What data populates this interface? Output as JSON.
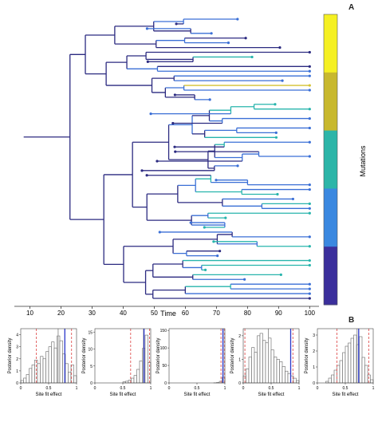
{
  "panels": {
    "a_label": "A",
    "b_label": "B"
  },
  "chart_data": [
    {
      "type": "phylogenetic-tree",
      "panel": "A",
      "xlabel": "Time",
      "x_ticks": [
        10,
        20,
        30,
        40,
        50,
        60,
        70,
        80,
        90,
        100
      ],
      "xlim": [
        5,
        103
      ],
      "colorbar": {
        "label": "Mutations",
        "colors": [
          "#f5f022",
          "#c8b82e",
          "#2cb5a8",
          "#3a88e0",
          "#3b2f9c"
        ],
        "branch_palette": [
          "#2b2a80",
          "#3a6fd6",
          "#27b4ac",
          "#d4c231"
        ]
      }
    },
    {
      "type": "histogram",
      "panel": "B",
      "ylabel": "Posterior density",
      "xlabel": "Site fit effect",
      "x_ticks": [
        "0",
        "0.5",
        "1"
      ],
      "bin_edges_from": 0.0,
      "bin_width": 0.05,
      "subplots": [
        {
          "y_ticks": [
            "0",
            "1",
            "2",
            "3",
            "4"
          ],
          "ylim": [
            0,
            4.5
          ],
          "counts": [
            0.2,
            0.4,
            0.7,
            1.2,
            1.5,
            1.9,
            1.6,
            2.2,
            2.0,
            2.6,
            3.0,
            3.4,
            2.9,
            3.9,
            3.5,
            2.4,
            1.6,
            0.9,
            1.5,
            0.6
          ],
          "mean": 0.67,
          "ci": [
            0.28,
            0.91
          ],
          "true": 0.79
        },
        {
          "y_ticks": [
            "0",
            "5",
            "10",
            "15"
          ],
          "ylim": [
            0,
            16
          ],
          "counts": [
            0,
            0,
            0,
            0,
            0,
            0,
            0,
            0,
            0,
            0,
            0.3,
            0.5,
            0.8,
            1.4,
            2.2,
            4.0,
            6.5,
            10.2,
            14.1,
            6.0
          ],
          "mean": 0.87,
          "ci": [
            0.64,
            0.98
          ],
          "true": 0.88
        },
        {
          "y_ticks": [
            "0",
            "50",
            "100",
            "150"
          ],
          "ylim": [
            0,
            155
          ],
          "counts": [
            0,
            0,
            0,
            0,
            0,
            0,
            0,
            0,
            0,
            0,
            0,
            0,
            0,
            0,
            0,
            0,
            0.4,
            1.2,
            4.5,
            16
          ],
          "mean": 0.97,
          "ci": [
            0.93,
            0.995
          ],
          "true": 0.965
        },
        {
          "y_ticks": [
            "0",
            "1",
            "2"
          ],
          "ylim": [
            0,
            2.3
          ],
          "counts": [
            0.3,
            0.6,
            1.1,
            1.5,
            1.3,
            2.0,
            2.1,
            1.8,
            1.7,
            1.9,
            1.4,
            1.1,
            1.0,
            0.9,
            0.7,
            0.5,
            0.4,
            0.3,
            0.2,
            0.1
          ],
          "mean": 0.45,
          "ci": [
            0.03,
            0.89
          ],
          "true": 0.85
        },
        {
          "y_ticks": [
            "0",
            "1",
            "2",
            "3"
          ],
          "ylim": [
            0,
            3.4
          ],
          "counts": [
            0,
            0,
            0,
            0.1,
            0.3,
            0.5,
            0.8,
            1.1,
            1.4,
            1.9,
            2.3,
            2.5,
            2.8,
            3.0,
            2.4,
            2.9,
            1.6,
            1.1,
            0.5,
            0.2
          ],
          "mean": 0.71,
          "ci": [
            0.35,
            0.92
          ],
          "true": 0.74
        }
      ]
    }
  ]
}
